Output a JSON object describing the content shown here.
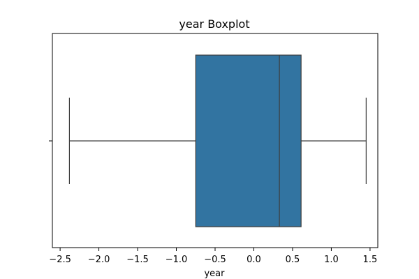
{
  "chart_data": {
    "type": "boxplot",
    "title": "year Boxplot",
    "xlabel": "year",
    "ylabel": "",
    "orientation": "horizontal",
    "xlim": [
      -2.6,
      1.6
    ],
    "xticks": [
      -2.5,
      -2.0,
      -1.5,
      -1.0,
      -0.5,
      0.0,
      0.5,
      1.0,
      1.5
    ],
    "xtick_labels": [
      "−2.5",
      "−2.0",
      "−1.5",
      "−1.0",
      "−0.5",
      "0.0",
      "0.5",
      "1.0",
      "1.5"
    ],
    "grid": false,
    "box": {
      "whisker_low": -2.38,
      "q1": -0.75,
      "median": 0.33,
      "q3": 0.61,
      "whisker_high": 1.45
    },
    "colors": {
      "box_fill": "#3274a1",
      "line": "#3d3d3d",
      "axes": "#000000"
    }
  }
}
